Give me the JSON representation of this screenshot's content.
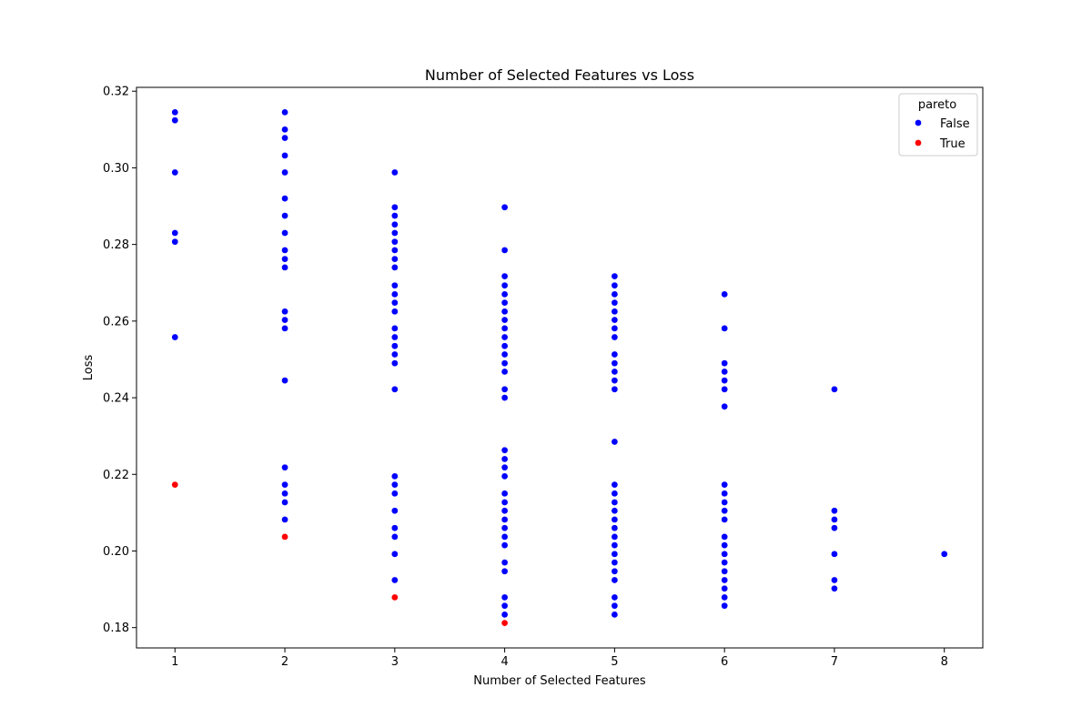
{
  "chart_data": {
    "type": "scatter",
    "title": "Number of Selected Features vs Loss",
    "xlabel": "Number of Selected Features",
    "ylabel": "Loss",
    "xlim": [
      0.65,
      8.35
    ],
    "ylim": [
      0.1747,
      0.321
    ],
    "xticks": [
      1,
      2,
      3,
      4,
      5,
      6,
      7,
      8
    ],
    "yticks": [
      0.18,
      0.2,
      0.22,
      0.24,
      0.26,
      0.28,
      0.3,
      0.32
    ],
    "ytick_labels": [
      "0.18",
      "0.20",
      "0.22",
      "0.24",
      "0.26",
      "0.28",
      "0.30",
      "0.32"
    ],
    "grid": false,
    "legend": {
      "title": "pareto",
      "placement": "top-right",
      "entries": [
        {
          "label": "False",
          "color": "#0000ff"
        },
        {
          "label": "True",
          "color": "#ff0000"
        }
      ]
    },
    "series": [
      {
        "name": "False",
        "color": "#0000ff",
        "points": [
          [
            1,
            0.3145
          ],
          [
            1,
            0.3124
          ],
          [
            1,
            0.2988
          ],
          [
            1,
            0.283
          ],
          [
            1,
            0.2807
          ],
          [
            1,
            0.2558
          ],
          [
            2,
            0.3145
          ],
          [
            2,
            0.31
          ],
          [
            2,
            0.3078
          ],
          [
            2,
            0.3032
          ],
          [
            2,
            0.2988
          ],
          [
            2,
            0.292
          ],
          [
            2,
            0.2875
          ],
          [
            2,
            0.283
          ],
          [
            2,
            0.2785
          ],
          [
            2,
            0.2762
          ],
          [
            2,
            0.274
          ],
          [
            2,
            0.2625
          ],
          [
            2,
            0.2603
          ],
          [
            2,
            0.2581
          ],
          [
            2,
            0.2445
          ],
          [
            2,
            0.2218
          ],
          [
            2,
            0.2173
          ],
          [
            2,
            0.215
          ],
          [
            2,
            0.2127
          ],
          [
            2,
            0.2082
          ],
          [
            3,
            0.2988
          ],
          [
            3,
            0.2897
          ],
          [
            3,
            0.2875
          ],
          [
            3,
            0.2852
          ],
          [
            3,
            0.283
          ],
          [
            3,
            0.2807
          ],
          [
            3,
            0.2785
          ],
          [
            3,
            0.2762
          ],
          [
            3,
            0.274
          ],
          [
            3,
            0.2693
          ],
          [
            3,
            0.267
          ],
          [
            3,
            0.2648
          ],
          [
            3,
            0.2625
          ],
          [
            3,
            0.2581
          ],
          [
            3,
            0.2558
          ],
          [
            3,
            0.2535
          ],
          [
            3,
            0.2513
          ],
          [
            3,
            0.249
          ],
          [
            3,
            0.2422
          ],
          [
            3,
            0.2195
          ],
          [
            3,
            0.2173
          ],
          [
            3,
            0.215
          ],
          [
            3,
            0.2105
          ],
          [
            3,
            0.206
          ],
          [
            3,
            0.2037
          ],
          [
            3,
            0.1992
          ],
          [
            3,
            0.1924
          ],
          [
            4,
            0.2897
          ],
          [
            4,
            0.2785
          ],
          [
            4,
            0.2717
          ],
          [
            4,
            0.2693
          ],
          [
            4,
            0.267
          ],
          [
            4,
            0.2648
          ],
          [
            4,
            0.2625
          ],
          [
            4,
            0.2603
          ],
          [
            4,
            0.2581
          ],
          [
            4,
            0.2558
          ],
          [
            4,
            0.2535
          ],
          [
            4,
            0.2513
          ],
          [
            4,
            0.249
          ],
          [
            4,
            0.2468
          ],
          [
            4,
            0.2422
          ],
          [
            4,
            0.24
          ],
          [
            4,
            0.2263
          ],
          [
            4,
            0.224
          ],
          [
            4,
            0.2218
          ],
          [
            4,
            0.2195
          ],
          [
            4,
            0.215
          ],
          [
            4,
            0.2127
          ],
          [
            4,
            0.2105
          ],
          [
            4,
            0.2082
          ],
          [
            4,
            0.206
          ],
          [
            4,
            0.2037
          ],
          [
            4,
            0.2015
          ],
          [
            4,
            0.197
          ],
          [
            4,
            0.1947
          ],
          [
            4,
            0.1879
          ],
          [
            4,
            0.1857
          ],
          [
            4,
            0.1834
          ],
          [
            5,
            0.2717
          ],
          [
            5,
            0.2693
          ],
          [
            5,
            0.267
          ],
          [
            5,
            0.2648
          ],
          [
            5,
            0.2625
          ],
          [
            5,
            0.2603
          ],
          [
            5,
            0.2581
          ],
          [
            5,
            0.2558
          ],
          [
            5,
            0.2513
          ],
          [
            5,
            0.249
          ],
          [
            5,
            0.2468
          ],
          [
            5,
            0.2445
          ],
          [
            5,
            0.2422
          ],
          [
            5,
            0.2285
          ],
          [
            5,
            0.2173
          ],
          [
            5,
            0.215
          ],
          [
            5,
            0.2127
          ],
          [
            5,
            0.2105
          ],
          [
            5,
            0.2082
          ],
          [
            5,
            0.206
          ],
          [
            5,
            0.2037
          ],
          [
            5,
            0.2015
          ],
          [
            5,
            0.1992
          ],
          [
            5,
            0.197
          ],
          [
            5,
            0.1947
          ],
          [
            5,
            0.1924
          ],
          [
            5,
            0.1879
          ],
          [
            5,
            0.1857
          ],
          [
            5,
            0.1834
          ],
          [
            6,
            0.267
          ],
          [
            6,
            0.2581
          ],
          [
            6,
            0.249
          ],
          [
            6,
            0.2468
          ],
          [
            6,
            0.2445
          ],
          [
            6,
            0.2422
          ],
          [
            6,
            0.2377
          ],
          [
            6,
            0.2173
          ],
          [
            6,
            0.215
          ],
          [
            6,
            0.2127
          ],
          [
            6,
            0.2105
          ],
          [
            6,
            0.2082
          ],
          [
            6,
            0.2037
          ],
          [
            6,
            0.2015
          ],
          [
            6,
            0.1992
          ],
          [
            6,
            0.197
          ],
          [
            6,
            0.1947
          ],
          [
            6,
            0.1924
          ],
          [
            6,
            0.1902
          ],
          [
            6,
            0.1879
          ],
          [
            6,
            0.1857
          ],
          [
            7,
            0.2422
          ],
          [
            7,
            0.2105
          ],
          [
            7,
            0.2082
          ],
          [
            7,
            0.206
          ],
          [
            7,
            0.1992
          ],
          [
            7,
            0.1924
          ],
          [
            7,
            0.1902
          ],
          [
            8,
            0.1992
          ]
        ]
      },
      {
        "name": "True",
        "color": "#ff0000",
        "points": [
          [
            1,
            0.2173
          ],
          [
            2,
            0.2037
          ],
          [
            3,
            0.1879
          ],
          [
            4,
            0.1812
          ]
        ]
      }
    ]
  }
}
